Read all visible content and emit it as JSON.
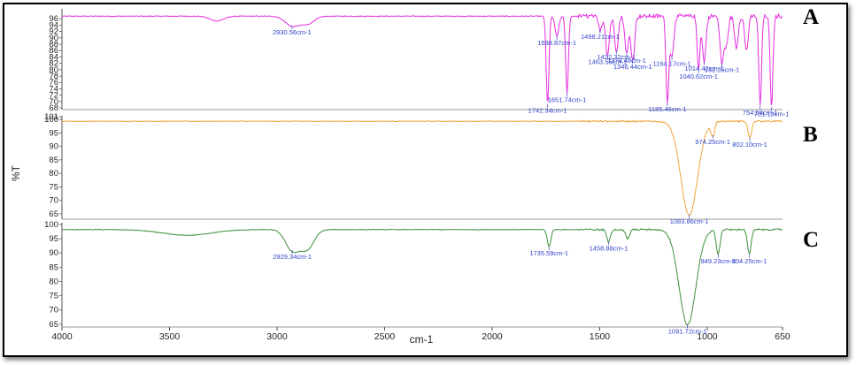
{
  "chart_data": {
    "type": "line",
    "title": "",
    "xlabel": "cm-1",
    "ylabel": "%T",
    "xlim": [
      4000,
      650
    ],
    "x_ticks": [
      "4000",
      "3500",
      "3000",
      "2500",
      "2000",
      "1500",
      "1000",
      "650"
    ],
    "colors": {
      "A": "#e62ee0",
      "B": "#f0a43c",
      "C": "#3f8f3a",
      "annotation": "#3344cc"
    },
    "panels": [
      {
        "label": "A",
        "ylim": [
          68,
          98
        ],
        "y_ticks": [
          "96",
          "94",
          "92",
          "90",
          "88",
          "86",
          "84",
          "82",
          "80",
          "78",
          "76",
          "74",
          "72",
          "70",
          "68"
        ],
        "baseline": 96.8,
        "peaks": [
          {
            "x": 3280,
            "y": 95.3
          },
          {
            "x": 2930.56,
            "y": 93.8,
            "label": "2930.56cm-1"
          },
          {
            "x": 2860,
            "y": 94.4
          },
          {
            "x": 1742.34,
            "y": 69.2,
            "label": "1742.34cm-1"
          },
          {
            "x": 1698.87,
            "y": 90.5,
            "label": "1698.87cm-1"
          },
          {
            "x": 1651.74,
            "y": 72.6,
            "label": "1651.74cm-1"
          },
          {
            "x": 1498.21,
            "y": 92.5,
            "label": "1498.21cm-1"
          },
          {
            "x": 1463.55,
            "y": 84.5,
            "label": "1463.55cm-1"
          },
          {
            "x": 1422.32,
            "y": 86.0,
            "label": "1422.32cm-1"
          },
          {
            "x": 1374.48,
            "y": 85.0,
            "label": "1374.48cm-1"
          },
          {
            "x": 1346.44,
            "y": 83.0,
            "label": "1346.44cm-1"
          },
          {
            "x": 1185.46,
            "y": 69.6,
            "label": "1185.46cm-1"
          },
          {
            "x": 1164.17,
            "y": 84.0,
            "label": "1164.17cm-1"
          },
          {
            "x": 1040.62,
            "y": 80.0,
            "label": "1040.62cm-1"
          },
          {
            "x": 1014.47,
            "y": 82.5,
            "label": "1014.47cm-1"
          },
          {
            "x": 932.25,
            "y": 82.0,
            "label": "932.25cm-1"
          },
          {
            "x": 910.8,
            "y": 88.0
          },
          {
            "x": 864.69,
            "y": 87.0
          },
          {
            "x": 817.72,
            "y": 86.0
          },
          {
            "x": 754.04,
            "y": 68.6,
            "label": "754.04cm-1"
          },
          {
            "x": 701.13,
            "y": 68.2,
            "label": "701.13cm-1"
          }
        ]
      },
      {
        "label": "B",
        "ylim": [
          64,
          101
        ],
        "y_ticks": [
          "101",
          "100",
          "95",
          "90",
          "85",
          "80",
          "75",
          "70",
          "65"
        ],
        "baseline": 99.3,
        "peaks": [
          {
            "x": 1083.86,
            "y": 64.6,
            "label": "1083.86cm-1"
          },
          {
            "x": 974.25,
            "y": 94.2,
            "label": "974.25cm-1"
          },
          {
            "x": 802.1,
            "y": 93.2,
            "label": "802.10cm-1"
          }
        ]
      },
      {
        "label": "C",
        "ylim": [
          64,
          100
        ],
        "y_ticks": [
          "100",
          "95",
          "90",
          "85",
          "80",
          "75",
          "70",
          "65"
        ],
        "baseline": 98.2,
        "peaks": [
          {
            "x": 3420,
            "y": 96.2
          },
          {
            "x": 2929.34,
            "y": 91.0,
            "label": "2929.34cm-1"
          },
          {
            "x": 2860,
            "y": 91.5
          },
          {
            "x": 1735.59,
            "y": 92.2,
            "label": "1735.59cm-1"
          },
          {
            "x": 1458.88,
            "y": 94.0,
            "label": "1458.88cm-1"
          },
          {
            "x": 1370,
            "y": 95.0
          },
          {
            "x": 1091.72,
            "y": 64.8,
            "label": "1091.72cm-1"
          },
          {
            "x": 949.23,
            "y": 89.5,
            "label": "949.23cm-1"
          },
          {
            "x": 804.25,
            "y": 89.5,
            "label": "804.25cm-1"
          }
        ]
      }
    ]
  }
}
